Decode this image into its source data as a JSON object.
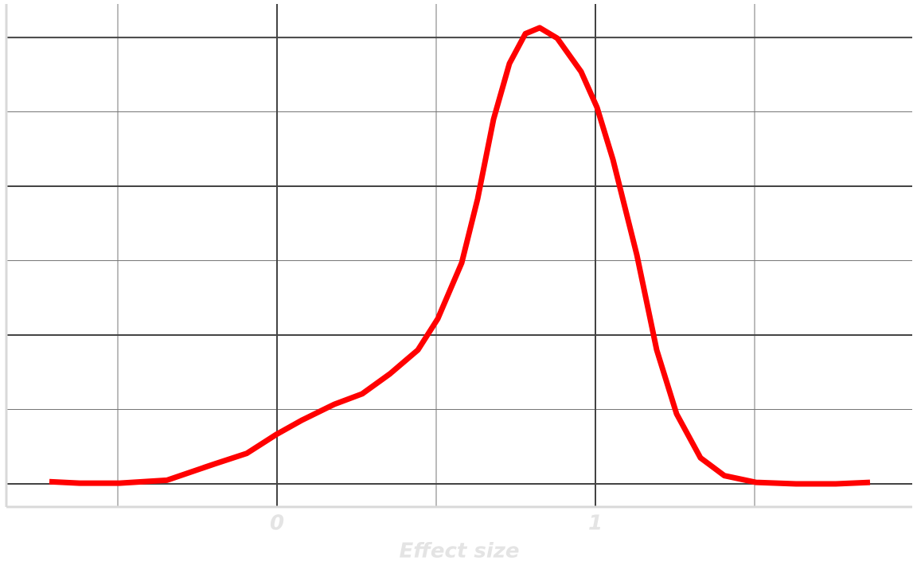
{
  "chart_data": {
    "type": "line",
    "xlabel": "Effect size",
    "x": [
      -0.715,
      -0.62,
      -0.495,
      -0.345,
      -0.195,
      -0.095,
      0,
      0.08,
      0.18,
      0.2675,
      0.355,
      0.4425,
      0.505,
      0.58,
      0.63,
      0.68,
      0.73,
      0.78,
      0.825,
      0.88,
      0.955,
      1.005,
      1.055,
      1.13,
      1.1925,
      1.255,
      1.33,
      1.405,
      1.505,
      1.63,
      1.755,
      1.8625
    ],
    "series": [
      {
        "color": "#ff0000",
        "values": [
          0.03,
          0.01,
          0.01,
          0.05,
          0.27,
          0.41,
          0.67,
          0.86,
          1.07,
          1.21,
          1.48,
          1.8,
          2.22,
          2.97,
          3.83,
          4.9,
          5.65,
          6.05,
          6.13,
          5.99,
          5.54,
          5.06,
          4.36,
          3.08,
          1.8,
          0.94,
          0.35,
          0.11,
          0.02,
          0,
          0,
          0.02
        ]
      }
    ],
    "xlim": [
      -0.85,
      1.995
    ],
    "ylim": [
      -0.31,
      6.45
    ],
    "xticks": [
      0,
      1
    ],
    "xminor": [
      -0.5,
      0.5,
      1.5
    ],
    "yticks": [
      0,
      2,
      4,
      6
    ],
    "yminor": [
      1,
      3,
      5
    ],
    "grid": true
  }
}
